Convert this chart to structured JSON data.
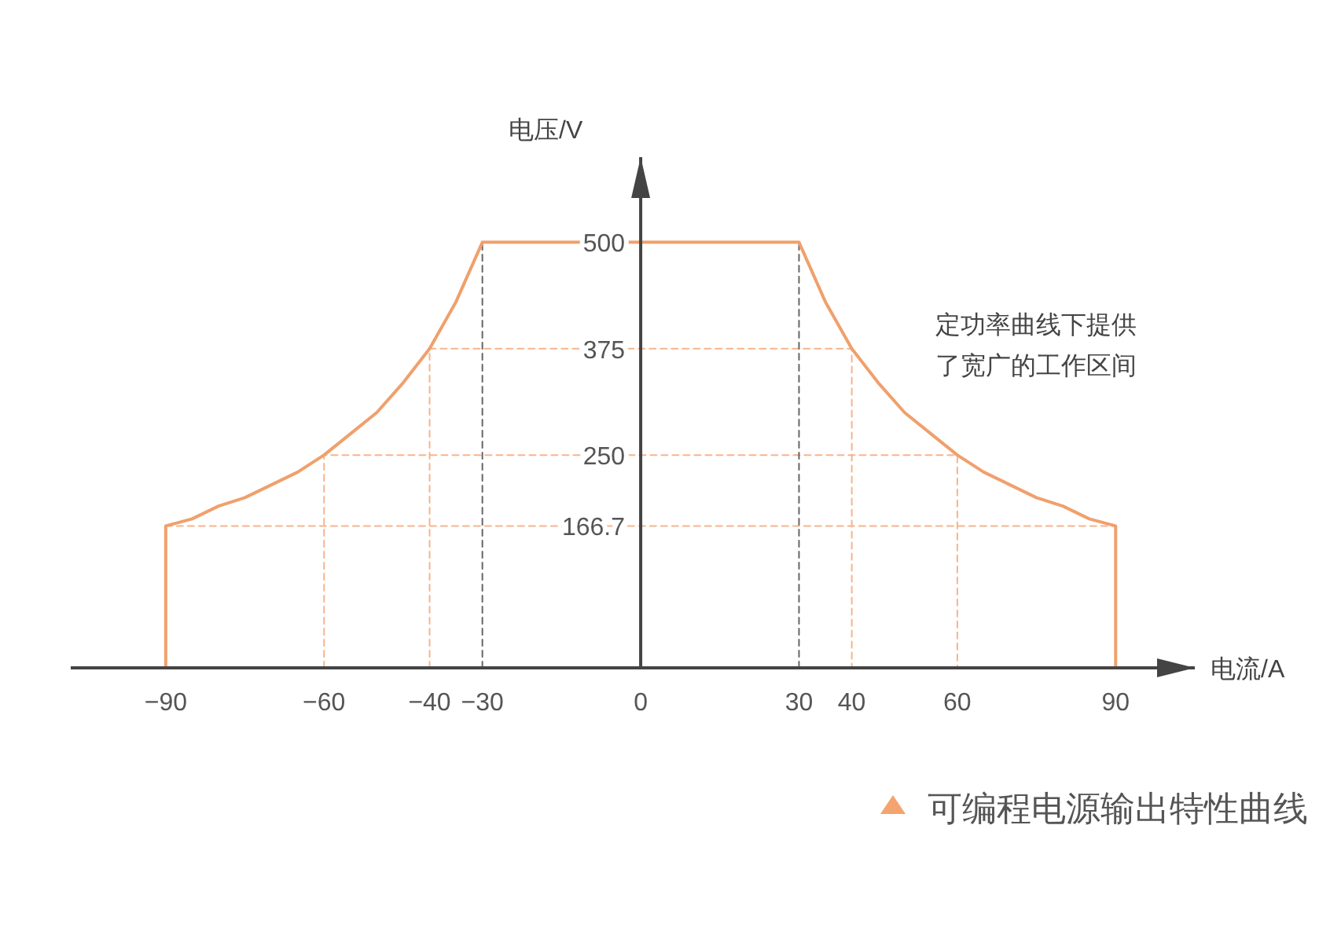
{
  "chart_data": {
    "type": "line",
    "title": "可编程电源输出特性曲线",
    "xlabel": "电流/A",
    "ylabel": "电压/V",
    "annotations": [
      "定功率曲线下提供了宽广的工作区间"
    ],
    "xlim": [
      -108,
      105
    ],
    "ylim": [
      0,
      600
    ],
    "xticks": [
      -90,
      -60,
      -40,
      -30,
      0,
      30,
      40,
      60,
      90
    ],
    "yticks": [
      166.7,
      250,
      375,
      500
    ],
    "grid": false,
    "marker": "none",
    "series": [
      {
        "color": "#f6b48c",
        "line_style": "dashed",
        "x": [
          -90,
          90
        ],
        "values": [
          166.7,
          166.7
        ]
      },
      {
        "color": "#f6b48c",
        "line_style": "dashed",
        "x": [
          -60,
          -60,
          60,
          60
        ],
        "values": [
          0,
          250,
          250,
          0
        ]
      },
      {
        "color": "#f6b48c",
        "line_style": "dashed",
        "x": [
          -40,
          -40,
          40,
          40
        ],
        "values": [
          0,
          375,
          375,
          0
        ]
      },
      {
        "color": "#666666",
        "line_style": "dashed",
        "x": [
          -30,
          -30
        ],
        "values": [
          0,
          500
        ]
      },
      {
        "color": "#666666",
        "line_style": "dashed",
        "x": [
          30,
          30
        ],
        "values": [
          0,
          500
        ]
      },
      {
        "color": "#f0a06c",
        "line_style": "solid",
        "x": [
          -90,
          -90,
          -85,
          -80,
          -75,
          -70,
          -65,
          -60,
          -55,
          -50,
          -45,
          -40,
          -35,
          -30,
          30,
          35,
          40,
          45,
          50,
          55,
          60,
          65,
          70,
          75,
          80,
          85,
          90,
          90
        ],
        "values": [
          0,
          166.7,
          175,
          190,
          200,
          215,
          230,
          250,
          275,
          300,
          335,
          375,
          430,
          500,
          500,
          430,
          375,
          335,
          300,
          275,
          250,
          230,
          215,
          200,
          190,
          175,
          166.7,
          0
        ]
      }
    ]
  }
}
